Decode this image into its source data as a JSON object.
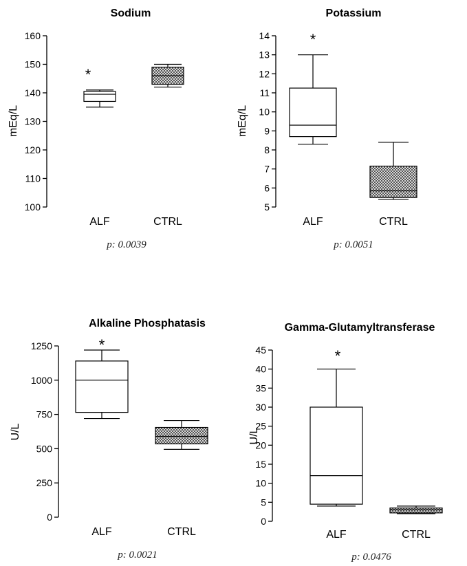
{
  "chart_data": [
    {
      "type": "box",
      "title": "Sodium",
      "ylabel": "mEq/L",
      "ylim": [
        100,
        160
      ],
      "yticks": [
        100,
        110,
        120,
        130,
        140,
        150,
        160
      ],
      "categories": [
        "ALF",
        "CTRL"
      ],
      "boxes": [
        {
          "category": "ALF",
          "min": 135,
          "q1": 137,
          "median": 139.5,
          "q3": 140.5,
          "max": 141,
          "fill": "white",
          "significant": true
        },
        {
          "category": "CTRL",
          "min": 142,
          "q1": 143,
          "median": 146,
          "q3": 149,
          "max": 150,
          "fill": "hatched",
          "significant": false
        }
      ],
      "significance_marker": "*",
      "pvalue": "p: 0.0039"
    },
    {
      "type": "box",
      "title": "Potassium",
      "ylabel": "mEq/L",
      "ylim": [
        5,
        14
      ],
      "yticks": [
        5,
        6,
        7,
        8,
        9,
        10,
        11,
        12,
        13,
        14
      ],
      "categories": [
        "ALF",
        "CTRL"
      ],
      "boxes": [
        {
          "category": "ALF",
          "min": 8.3,
          "q1": 8.7,
          "median": 9.3,
          "q3": 11.25,
          "max": 13.0,
          "fill": "white",
          "significant": true
        },
        {
          "category": "CTRL",
          "min": 5.4,
          "q1": 5.5,
          "median": 5.85,
          "q3": 7.15,
          "max": 8.4,
          "fill": "hatched",
          "significant": false
        }
      ],
      "significance_marker": "*",
      "pvalue": "p:  0.0051"
    },
    {
      "type": "box",
      "title": "Alkaline Phosphatasis",
      "ylabel": "U/L",
      "ylim": [
        0,
        1250
      ],
      "yticks": [
        0,
        250,
        500,
        750,
        1000,
        1250
      ],
      "categories": [
        "ALF",
        "CTRL"
      ],
      "boxes": [
        {
          "category": "ALF",
          "min": 720,
          "q1": 765,
          "median": 1000,
          "q3": 1140,
          "max": 1220,
          "fill": "white",
          "significant": true
        },
        {
          "category": "CTRL",
          "min": 495,
          "q1": 535,
          "median": 590,
          "q3": 655,
          "max": 705,
          "fill": "hatched",
          "significant": false
        }
      ],
      "significance_marker": "*",
      "pvalue": "p: 0.0021"
    },
    {
      "type": "box",
      "title": "Gamma-Glutamyltransferase",
      "ylabel": "U/L",
      "ylim": [
        0,
        45
      ],
      "yticks": [
        0,
        5,
        10,
        15,
        20,
        25,
        30,
        35,
        40,
        45
      ],
      "categories": [
        "ALF",
        "CTRL"
      ],
      "boxes": [
        {
          "category": "ALF",
          "min": 4,
          "q1": 4.5,
          "median": 12,
          "q3": 30,
          "max": 40,
          "fill": "white",
          "significant": true
        },
        {
          "category": "CTRL",
          "min": 2,
          "q1": 2.2,
          "median": 3,
          "q3": 3.5,
          "max": 4,
          "fill": "hatched",
          "significant": false
        }
      ],
      "significance_marker": "*",
      "pvalue": "p: 0.0476"
    }
  ]
}
